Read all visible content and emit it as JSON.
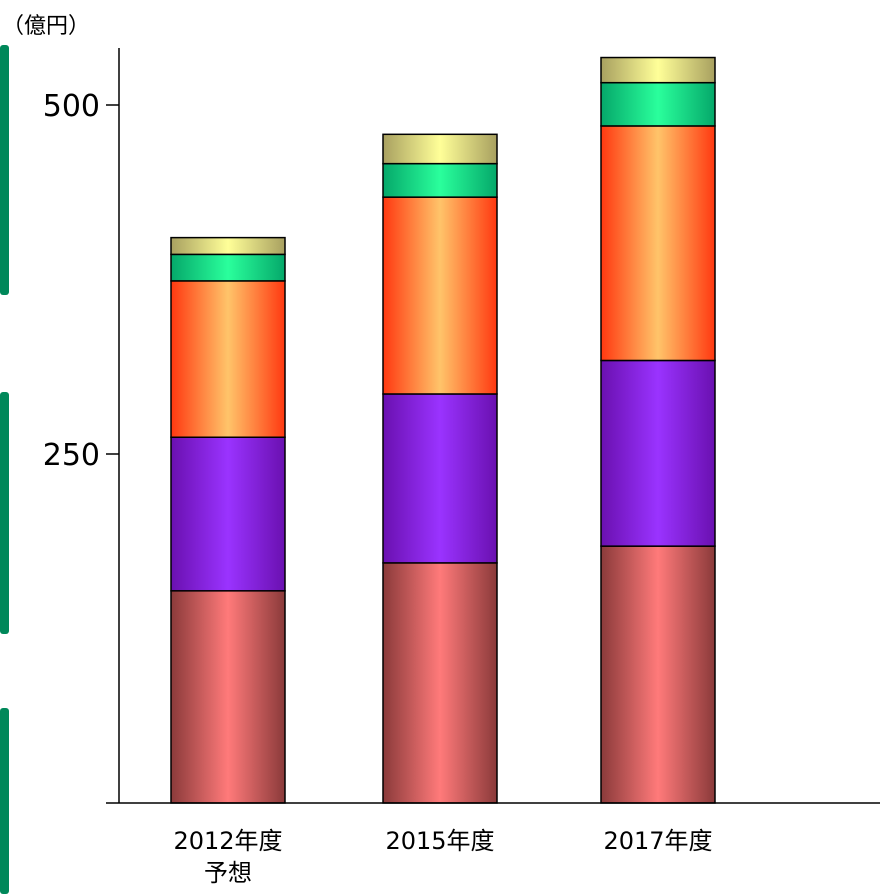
{
  "unit_label": "（億円）",
  "colors": {
    "side_bars": "#00885a",
    "axis": "#000000"
  },
  "chart_data": {
    "type": "bar",
    "stacked": true,
    "categories": [
      [
        "2012年度",
        "予想"
      ],
      [
        "2015年度"
      ],
      [
        "2017年度"
      ]
    ],
    "ylim": [
      0,
      540
    ],
    "yticks": [
      250,
      500
    ],
    "grid": false,
    "legend": "none",
    "series": [
      {
        "color_dark": "#8a3a3a",
        "color_light": "#ff7a7a",
        "values": [
          152,
          172,
          184
        ]
      },
      {
        "color_dark": "#6a10b0",
        "color_light": "#9a33ff",
        "values": [
          110,
          121,
          133
        ]
      },
      {
        "color_dark": "#ff3810",
        "color_light": "#ffc46a",
        "values": [
          112,
          141,
          168
        ]
      },
      {
        "color_dark": "#05a86a",
        "color_light": "#2aff9c",
        "values": [
          19,
          24,
          31
        ]
      },
      {
        "color_dark": "#a8a060",
        "color_light": "#ffff98",
        "values": [
          12,
          21,
          18
        ]
      }
    ]
  }
}
